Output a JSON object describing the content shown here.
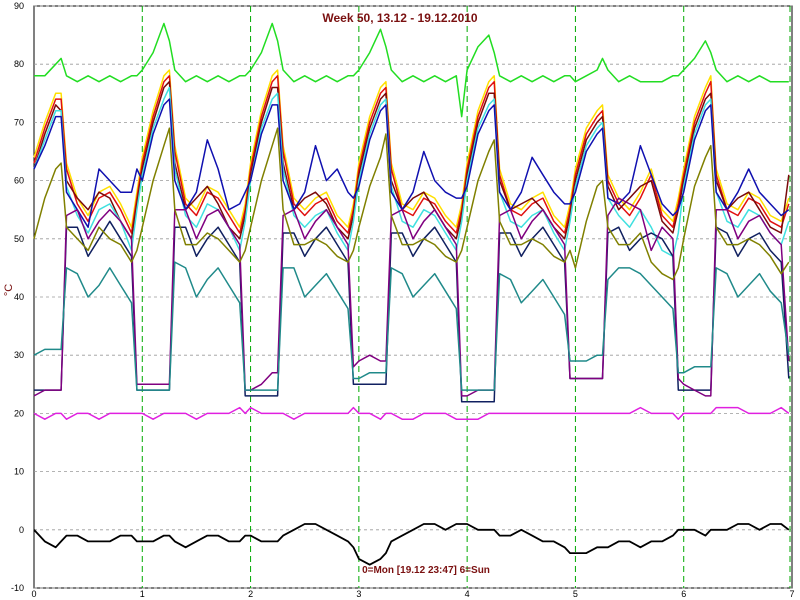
{
  "chart_data": {
    "type": "line",
    "title": "Week 50, 13.12 - 19.12.2010",
    "ylabel": "°C",
    "footer": "0=Mon [19.12 23:47] 6=Sun",
    "xlim": [
      0,
      7
    ],
    "ylim": [
      -10,
      90
    ],
    "x_ticks": [
      "0",
      "1",
      "2",
      "3",
      "4",
      "5",
      "6",
      "7"
    ],
    "y_ticks": [
      "-10",
      "0",
      "10",
      "20",
      "30",
      "40",
      "50",
      "60",
      "70",
      "80",
      "90"
    ],
    "grid": true,
    "day_markers": [
      1,
      2,
      3,
      4,
      5,
      6
    ],
    "end_marker": 7,
    "colors": {
      "grid": "#9a9a9a",
      "title": "#7a1010",
      "marker": "#00aa00",
      "axis": "#000000"
    },
    "x": [
      0,
      0.1,
      0.2,
      0.25,
      0.3,
      0.4,
      0.5,
      0.6,
      0.7,
      0.8,
      0.9,
      0.95,
      1.0,
      1.1,
      1.2,
      1.25,
      1.3,
      1.4,
      1.5,
      1.6,
      1.7,
      1.8,
      1.9,
      1.95,
      2.0,
      2.1,
      2.2,
      2.25,
      2.3,
      2.4,
      2.5,
      2.6,
      2.7,
      2.8,
      2.9,
      2.95,
      3.0,
      3.1,
      3.2,
      3.25,
      3.3,
      3.4,
      3.5,
      3.6,
      3.7,
      3.8,
      3.9,
      3.95,
      4.0,
      4.1,
      4.2,
      4.25,
      4.3,
      4.4,
      4.5,
      4.6,
      4.7,
      4.8,
      4.9,
      4.95,
      5.0,
      5.1,
      5.2,
      5.25,
      5.3,
      5.4,
      5.5,
      5.6,
      5.7,
      5.8,
      5.9,
      5.95,
      6.0,
      6.1,
      6.2,
      6.25,
      6.3,
      6.4,
      6.5,
      6.6,
      6.7,
      6.8,
      6.9,
      6.97
    ],
    "series": [
      {
        "color": "#22dd22",
        "width": 1.5,
        "values": [
          78,
          78,
          80,
          81,
          78,
          77,
          78,
          77,
          78,
          77,
          78,
          78,
          79,
          82,
          87,
          84,
          79,
          77,
          78,
          77,
          78,
          77,
          78,
          78,
          79,
          82,
          87,
          84,
          79,
          77,
          78,
          77,
          78,
          77,
          78,
          78,
          79,
          82,
          86,
          83,
          79,
          77,
          78,
          77,
          78,
          77,
          78,
          71,
          79,
          83,
          85,
          82,
          78,
          77,
          78,
          77,
          78,
          77,
          78,
          78,
          77,
          78,
          79,
          81,
          79,
          77,
          78,
          77,
          77,
          77,
          78,
          78,
          79,
          81,
          84,
          82,
          79,
          77,
          78,
          77,
          78,
          77,
          77,
          77
        ]
      },
      {
        "color": "#ffe000",
        "width": 1.5,
        "values": [
          64,
          70,
          75,
          75,
          63,
          57,
          54,
          58,
          59,
          56,
          52,
          58,
          64,
          72,
          78,
          79,
          66,
          57,
          55,
          59,
          58,
          55,
          52,
          56,
          63,
          72,
          78,
          79,
          66,
          57,
          55,
          57,
          58,
          54,
          52,
          56,
          63,
          71,
          76,
          77,
          63,
          56,
          55,
          58,
          57,
          54,
          52,
          56,
          63,
          72,
          77,
          78,
          62,
          56,
          55,
          57,
          58,
          54,
          52,
          56,
          62,
          69,
          72,
          73,
          61,
          57,
          55,
          58,
          62,
          55,
          53,
          57,
          62,
          71,
          76,
          78,
          62,
          56,
          55,
          58,
          57,
          54,
          53,
          57
        ]
      },
      {
        "color": "#e01010",
        "width": 1.5,
        "values": [
          63,
          69,
          74,
          74,
          62,
          56,
          53,
          57,
          58,
          55,
          51,
          57,
          63,
          71,
          77,
          78,
          65,
          56,
          54,
          58,
          57,
          54,
          51,
          55,
          62,
          71,
          77,
          78,
          65,
          56,
          54,
          56,
          57,
          53,
          51,
          55,
          62,
          70,
          75,
          76,
          62,
          55,
          54,
          57,
          56,
          53,
          51,
          55,
          62,
          71,
          76,
          77,
          61,
          55,
          54,
          56,
          57,
          53,
          51,
          55,
          61,
          68,
          71,
          72,
          60,
          56,
          54,
          57,
          61,
          54,
          52,
          56,
          61,
          70,
          75,
          77,
          61,
          55,
          54,
          57,
          56,
          53,
          52,
          56
        ]
      },
      {
        "color": "#7a0a0a",
        "width": 1.5,
        "values": [
          62,
          68,
          73,
          72,
          60,
          57,
          55,
          58,
          57,
          53,
          50,
          56,
          62,
          70,
          76,
          77,
          63,
          55,
          57,
          59,
          56,
          52,
          50,
          54,
          61,
          70,
          76,
          76,
          63,
          55,
          57,
          58,
          56,
          52,
          50,
          54,
          61,
          69,
          74,
          75,
          60,
          55,
          57,
          58,
          55,
          52,
          50,
          54,
          61,
          70,
          75,
          75,
          60,
          55,
          56,
          57,
          55,
          52,
          50,
          54,
          60,
          67,
          70,
          71,
          59,
          55,
          57,
          59,
          60,
          53,
          51,
          55,
          60,
          69,
          74,
          75,
          60,
          55,
          57,
          58,
          55,
          52,
          51,
          61
        ]
      },
      {
        "color": "#40e0e0",
        "width": 1.5,
        "values": [
          62,
          67,
          72,
          72,
          59,
          54,
          51,
          55,
          56,
          53,
          48,
          55,
          61,
          69,
          74,
          76,
          62,
          54,
          52,
          56,
          55,
          52,
          48,
          53,
          60,
          69,
          74,
          75,
          62,
          54,
          52,
          54,
          55,
          51,
          48,
          53,
          60,
          68,
          73,
          74,
          59,
          53,
          52,
          55,
          54,
          51,
          48,
          53,
          60,
          69,
          73,
          74,
          58,
          53,
          52,
          54,
          55,
          51,
          48,
          53,
          59,
          66,
          69,
          70,
          57,
          54,
          52,
          55,
          52,
          48,
          47,
          51,
          59,
          68,
          73,
          74,
          58,
          53,
          52,
          55,
          54,
          51,
          49,
          53
        ]
      },
      {
        "color": "#1010b0",
        "width": 1.5,
        "values": [
          62,
          66,
          71,
          71,
          58,
          55,
          52,
          62,
          60,
          58,
          58,
          62,
          60,
          68,
          73,
          74,
          60,
          55,
          58,
          67,
          62,
          55,
          56,
          58,
          60,
          68,
          73,
          73,
          60,
          55,
          58,
          66,
          60,
          62,
          58,
          57,
          59,
          67,
          72,
          73,
          58,
          55,
          58,
          65,
          60,
          58,
          57,
          57,
          59,
          68,
          72,
          73,
          58,
          55,
          58,
          64,
          61,
          58,
          56,
          56,
          58,
          65,
          68,
          69,
          57,
          56,
          58,
          66,
          61,
          56,
          54,
          55,
          58,
          67,
          72,
          73,
          58,
          55,
          58,
          62,
          58,
          56,
          54,
          55
        ]
      },
      {
        "color": "#102060",
        "width": 1.5,
        "values": [
          24,
          24,
          24,
          24,
          52,
          52,
          47,
          50,
          53,
          50,
          47,
          24,
          24,
          24,
          24,
          24,
          52,
          52,
          47,
          50,
          52,
          49,
          46,
          23,
          23,
          23,
          23,
          23,
          51,
          51,
          47,
          50,
          52,
          49,
          46,
          25,
          25,
          25,
          25,
          25,
          51,
          51,
          47,
          50,
          52,
          49,
          46,
          22,
          22,
          22,
          22,
          22,
          51,
          51,
          47,
          50,
          52,
          49,
          46,
          26,
          26,
          26,
          26,
          26,
          51,
          52,
          48,
          50,
          51,
          50,
          47,
          24,
          24,
          24,
          24,
          24,
          52,
          51,
          47,
          50,
          51,
          48,
          46,
          26
        ]
      },
      {
        "color": "#800080",
        "width": 1.5,
        "values": [
          23,
          24,
          24,
          24,
          54,
          55,
          50,
          53,
          55,
          53,
          50,
          25,
          25,
          25,
          25,
          25,
          55,
          55,
          50,
          54,
          55,
          52,
          49,
          24,
          24,
          25,
          27,
          27,
          54,
          55,
          50,
          53,
          55,
          52,
          49,
          28,
          29,
          30,
          29,
          29,
          54,
          55,
          50,
          53,
          55,
          52,
          49,
          23,
          23,
          24,
          24,
          24,
          54,
          55,
          50,
          53,
          55,
          52,
          49,
          26,
          26,
          26,
          26,
          26,
          54,
          57,
          56,
          55,
          48,
          52,
          50,
          26,
          25,
          24,
          23,
          23,
          55,
          55,
          50,
          53,
          54,
          51,
          49,
          29
        ]
      },
      {
        "color": "#808000",
        "width": 1.5,
        "values": [
          50,
          57,
          62,
          63,
          52,
          50,
          48,
          52,
          50,
          49,
          46,
          48,
          52,
          60,
          66,
          69,
          55,
          49,
          49,
          51,
          50,
          48,
          46,
          48,
          52,
          60,
          66,
          69,
          55,
          49,
          49,
          50,
          49,
          47,
          46,
          48,
          52,
          59,
          64,
          68,
          54,
          49,
          49,
          50,
          49,
          47,
          46,
          48,
          52,
          60,
          65,
          67,
          53,
          49,
          49,
          50,
          49,
          47,
          46,
          48,
          45,
          53,
          59,
          60,
          52,
          49,
          49,
          51,
          46,
          44,
          43,
          45,
          50,
          59,
          64,
          66,
          52,
          49,
          49,
          50,
          49,
          47,
          44,
          46
        ]
      },
      {
        "color": "#208a8a",
        "width": 1.5,
        "values": [
          30,
          31,
          31,
          31,
          45,
          44,
          40,
          42,
          45,
          42,
          39,
          24,
          24,
          24,
          24,
          24,
          46,
          45,
          40,
          43,
          45,
          42,
          39,
          24,
          24,
          24,
          24,
          24,
          45,
          45,
          40,
          42,
          44,
          41,
          38,
          26,
          26,
          27,
          27,
          27,
          45,
          44,
          40,
          42,
          44,
          41,
          38,
          24,
          24,
          24,
          24,
          24,
          44,
          43,
          39,
          41,
          43,
          40,
          37,
          29,
          29,
          29,
          30,
          30,
          43,
          45,
          45,
          44,
          42,
          40,
          38,
          27,
          27,
          28,
          28,
          28,
          45,
          44,
          40,
          42,
          44,
          41,
          39,
          30
        ]
      },
      {
        "color": "#e020e0",
        "width": 1.5,
        "values": [
          20,
          19,
          20,
          20,
          19,
          20,
          20,
          19,
          20,
          20,
          20,
          20,
          20,
          19,
          20,
          20,
          20,
          20,
          19,
          20,
          20,
          20,
          21,
          20,
          21,
          20,
          20,
          20,
          20,
          19,
          20,
          20,
          20,
          20,
          20,
          21,
          20,
          20,
          19,
          20,
          20,
          19,
          19,
          20,
          20,
          20,
          19,
          19,
          19,
          19,
          20,
          20,
          20,
          20,
          20,
          20,
          20,
          20,
          20,
          20,
          20,
          20,
          20,
          20,
          20,
          20,
          20,
          21,
          20,
          20,
          20,
          19,
          20,
          20,
          20,
          20,
          21,
          21,
          21,
          20,
          20,
          20,
          21,
          20
        ]
      },
      {
        "color": "#000000",
        "width": 1.8,
        "values": [
          0,
          -2,
          -3,
          -2,
          -1,
          -1,
          -2,
          -2,
          -2,
          -1,
          -1,
          -2,
          -2,
          -2,
          -1,
          -1,
          -2,
          -3,
          -2,
          -1,
          -1,
          -2,
          -2,
          -1,
          -1,
          -2,
          -2,
          -2,
          -1,
          0,
          1,
          1,
          0,
          -1,
          -2,
          -3,
          -5,
          -6,
          -5,
          -4,
          -2,
          -1,
          0,
          1,
          1,
          0,
          1,
          1,
          1,
          0,
          0,
          0,
          -1,
          -1,
          0,
          -1,
          -2,
          -2,
          -3,
          -4,
          -4,
          -4,
          -3,
          -3,
          -3,
          -2,
          -2,
          -3,
          -2,
          -2,
          -1,
          0,
          0,
          0,
          -1,
          0,
          0,
          0,
          1,
          1,
          0,
          1,
          1,
          0
        ]
      }
    ]
  }
}
